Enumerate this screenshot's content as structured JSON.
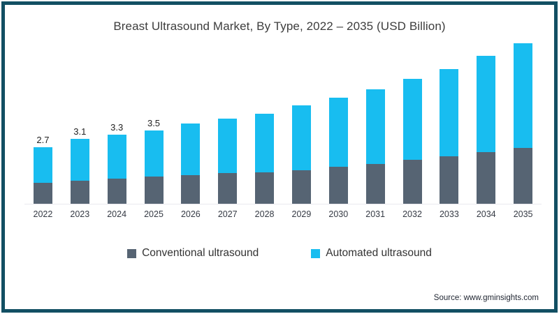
{
  "frame": {
    "border_color": "#124f63"
  },
  "title": "Breast Ultrasound Market, By Type, 2022 – 2035 (USD Billion)",
  "source": "Source: www.gminsights.com",
  "legend": {
    "items": [
      {
        "label": "Conventional ultrasound",
        "color": "#566473"
      },
      {
        "label": "Automated ultrasound",
        "color": "#18bdf0"
      }
    ]
  },
  "chart_data": {
    "type": "bar",
    "stacked": true,
    "title": "Breast Ultrasound Market, By Type, 2022 – 2035 (USD Billion)",
    "categories": [
      "2022",
      "2023",
      "2024",
      "2025",
      "2026",
      "2027",
      "2028",
      "2029",
      "2030",
      "2031",
      "2032",
      "2033",
      "2034",
      "2035"
    ],
    "series": [
      {
        "name": "Conventional ultrasound",
        "color": "#566473",
        "values": [
          1.0,
          1.1,
          1.2,
          1.3,
          1.35,
          1.45,
          1.5,
          1.6,
          1.75,
          1.9,
          2.1,
          2.25,
          2.45,
          2.65
        ]
      },
      {
        "name": "Automated ultrasound",
        "color": "#18bdf0",
        "values": [
          1.7,
          2.0,
          2.1,
          2.2,
          2.45,
          2.6,
          2.8,
          3.1,
          3.3,
          3.55,
          3.85,
          4.15,
          4.6,
          5.0
        ]
      }
    ],
    "totals": [
      2.7,
      3.1,
      3.3,
      3.5,
      3.8,
      4.05,
      4.3,
      4.7,
      5.05,
      5.45,
      5.95,
      6.4,
      7.05,
      7.65
    ],
    "visible_total_labels": [
      "2.7",
      "3.1",
      "3.3",
      "3.5",
      "",
      "",
      "",
      "",
      "",
      "",
      "",
      "",
      "",
      ""
    ],
    "xlabel": "",
    "ylabel": "USD Billion",
    "ylim": [
      0,
      8
    ],
    "grid": false,
    "legend_position": "bottom"
  }
}
